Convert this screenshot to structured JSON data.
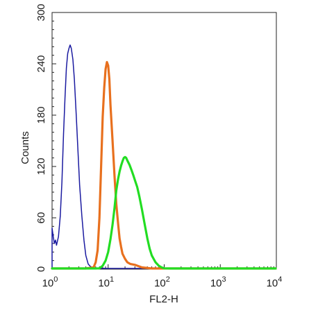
{
  "chart_data": {
    "type": "line",
    "title": "",
    "xlabel": "FL2-H",
    "ylabel": "Counts",
    "x_scale": "log",
    "xlim": [
      1,
      10000
    ],
    "ylim": [
      0,
      300
    ],
    "x_ticks": [
      {
        "base": "10",
        "exp": "0",
        "value": 1
      },
      {
        "base": "10",
        "exp": "1",
        "value": 10
      },
      {
        "base": "10",
        "exp": "2",
        "value": 100
      },
      {
        "base": "10",
        "exp": "3",
        "value": 1000
      },
      {
        "base": "10",
        "exp": "4",
        "value": 10000
      }
    ],
    "y_ticks": [
      "0",
      "60",
      "120",
      "180",
      "240",
      "300"
    ],
    "grid": false,
    "legend": "none",
    "series": [
      {
        "color": "#1a1aa0",
        "points": [
          [
            1.0,
            0
          ],
          [
            1.0,
            48
          ],
          [
            1.05,
            38
          ],
          [
            1.1,
            30
          ],
          [
            1.15,
            34
          ],
          [
            1.2,
            28
          ],
          [
            1.3,
            38
          ],
          [
            1.4,
            62
          ],
          [
            1.5,
            102
          ],
          [
            1.6,
            158
          ],
          [
            1.7,
            200
          ],
          [
            1.8,
            235
          ],
          [
            1.9,
            252
          ],
          [
            2.0,
            258
          ],
          [
            2.1,
            262
          ],
          [
            2.2,
            258
          ],
          [
            2.35,
            245
          ],
          [
            2.5,
            222
          ],
          [
            2.7,
            180
          ],
          [
            2.9,
            138
          ],
          [
            3.1,
            98
          ],
          [
            3.4,
            62
          ],
          [
            3.7,
            34
          ],
          [
            4.0,
            16
          ],
          [
            4.4,
            6
          ],
          [
            5.0,
            2
          ],
          [
            6.0,
            1
          ],
          [
            10,
            0
          ],
          [
            10000,
            0
          ]
        ]
      },
      {
        "color": "#e8701e",
        "points": [
          [
            1.0,
            0
          ],
          [
            4.0,
            0
          ],
          [
            5.5,
            2
          ],
          [
            6.0,
            8
          ],
          [
            6.5,
            22
          ],
          [
            7.0,
            60
          ],
          [
            7.5,
            122
          ],
          [
            8.0,
            178
          ],
          [
            8.5,
            212
          ],
          [
            9.0,
            234
          ],
          [
            9.5,
            242
          ],
          [
            10.0,
            238
          ],
          [
            10.5,
            222
          ],
          [
            11.0,
            192
          ],
          [
            12.0,
            150
          ],
          [
            13.0,
            108
          ],
          [
            14.0,
            76
          ],
          [
            15.0,
            54
          ],
          [
            16.0,
            36
          ],
          [
            17.0,
            26
          ],
          [
            18.0,
            18
          ],
          [
            20.0,
            12
          ],
          [
            22.0,
            8
          ],
          [
            25.0,
            6
          ],
          [
            30.0,
            5
          ],
          [
            40.0,
            2
          ],
          [
            60.0,
            0
          ],
          [
            10000,
            0
          ]
        ]
      },
      {
        "color": "#22dd22",
        "points": [
          [
            1.0,
            0
          ],
          [
            6.0,
            0
          ],
          [
            7.0,
            1
          ],
          [
            8.0,
            4
          ],
          [
            9.0,
            10
          ],
          [
            10.0,
            20
          ],
          [
            11.0,
            35
          ],
          [
            12.0,
            52
          ],
          [
            13.0,
            72
          ],
          [
            14.0,
            92
          ],
          [
            15.0,
            105
          ],
          [
            16.0,
            114
          ],
          [
            17.0,
            121
          ],
          [
            18.0,
            126
          ],
          [
            19.0,
            130
          ],
          [
            20.0,
            131
          ],
          [
            21.0,
            130
          ],
          [
            22.0,
            127
          ],
          [
            24.0,
            122
          ],
          [
            26.0,
            116
          ],
          [
            28.0,
            110
          ],
          [
            30.0,
            104
          ],
          [
            33.0,
            96
          ],
          [
            36.0,
            85
          ],
          [
            40.0,
            70
          ],
          [
            45.0,
            52
          ],
          [
            50.0,
            36
          ],
          [
            55.0,
            24
          ],
          [
            60.0,
            16
          ],
          [
            70.0,
            8
          ],
          [
            80.0,
            4
          ],
          [
            90.0,
            2
          ],
          [
            100.0,
            1
          ],
          [
            130.0,
            0
          ],
          [
            10000,
            0
          ]
        ]
      }
    ]
  }
}
